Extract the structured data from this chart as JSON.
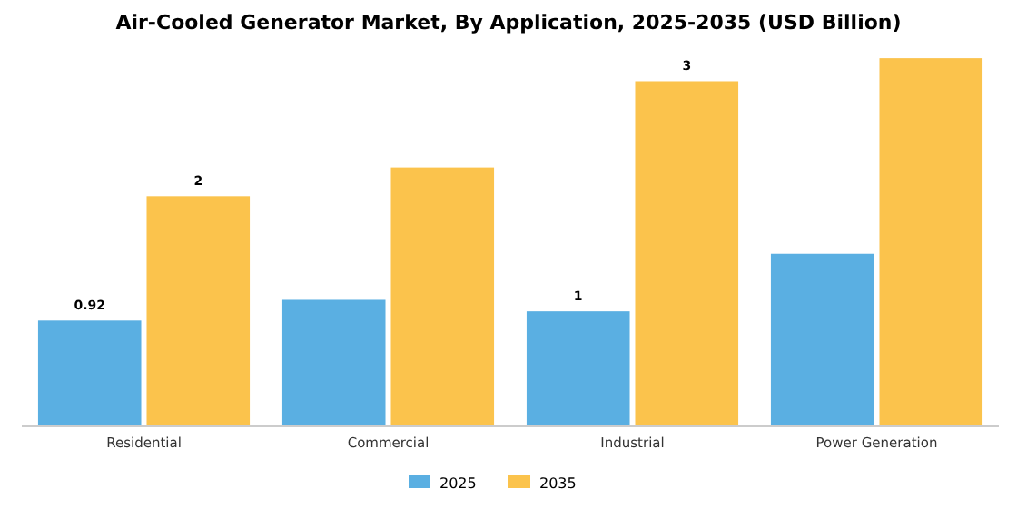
{
  "chart_data": {
    "type": "bar",
    "title": "Air-Cooled Generator Market, By Application, 2025-2035 (USD Billion)",
    "categories": [
      "Residential",
      "Commercial",
      "Industrial",
      "Power Generation"
    ],
    "series": [
      {
        "name": "2025",
        "color": "#5aafe2",
        "values": [
          0.92,
          1.1,
          1,
          1.5
        ],
        "value_labels": [
          "0.92",
          null,
          "1",
          null
        ]
      },
      {
        "name": "2035",
        "color": "#fbc34c",
        "values": [
          2,
          2.25,
          3,
          3.2
        ],
        "value_labels": [
          "2",
          null,
          "3",
          null
        ]
      }
    ],
    "legend": "bottom"
  }
}
